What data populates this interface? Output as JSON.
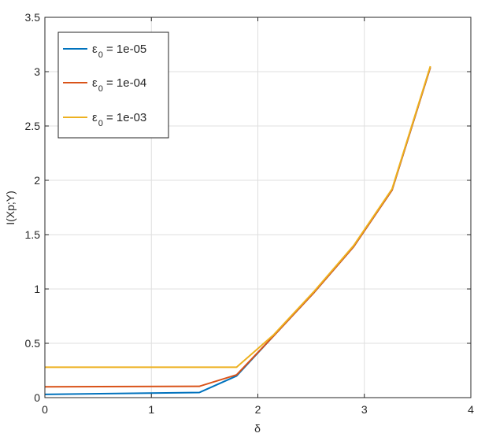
{
  "chart_data": {
    "type": "line",
    "xlabel": "δ",
    "ylabel": "I(Xp;Y)",
    "xlim": [
      0,
      4
    ],
    "ylim": [
      0,
      3.5
    ],
    "xticks": [
      "0",
      "1",
      "2",
      "3",
      "4"
    ],
    "yticks": [
      "0",
      "0.5",
      "1",
      "1.5",
      "2",
      "2.5",
      "3",
      "3.5"
    ],
    "grid": true,
    "legend_position": "top-left",
    "series": [
      {
        "name": "ε0 = 1e-05",
        "legend_main": "ε",
        "legend_sub": "0",
        "legend_rest": " = 1e-05",
        "color": "#0072bd",
        "x": [
          0,
          1.45,
          1.8,
          2.15,
          2.53,
          2.9,
          3.26,
          3.62
        ],
        "y": [
          0.03,
          0.047,
          0.2,
          0.57,
          0.97,
          1.39,
          1.91,
          3.04
        ]
      },
      {
        "name": "ε0 = 1e-04",
        "legend_main": "ε",
        "legend_sub": "0",
        "legend_rest": " = 1e-04",
        "color": "#d95319",
        "x": [
          0,
          1.45,
          1.8,
          2.15,
          2.53,
          2.9,
          3.26,
          3.62
        ],
        "y": [
          0.1,
          0.104,
          0.21,
          0.57,
          0.97,
          1.39,
          1.91,
          3.04
        ]
      },
      {
        "name": "ε0 = 1e-03",
        "legend_main": "ε",
        "legend_sub": "0",
        "legend_rest": " = 1e-03",
        "color": "#edb120",
        "x": [
          0,
          1.45,
          1.8,
          2.15,
          2.53,
          2.9,
          3.26,
          3.62
        ],
        "y": [
          0.28,
          0.28,
          0.28,
          0.58,
          0.98,
          1.4,
          1.92,
          3.05
        ]
      }
    ]
  }
}
